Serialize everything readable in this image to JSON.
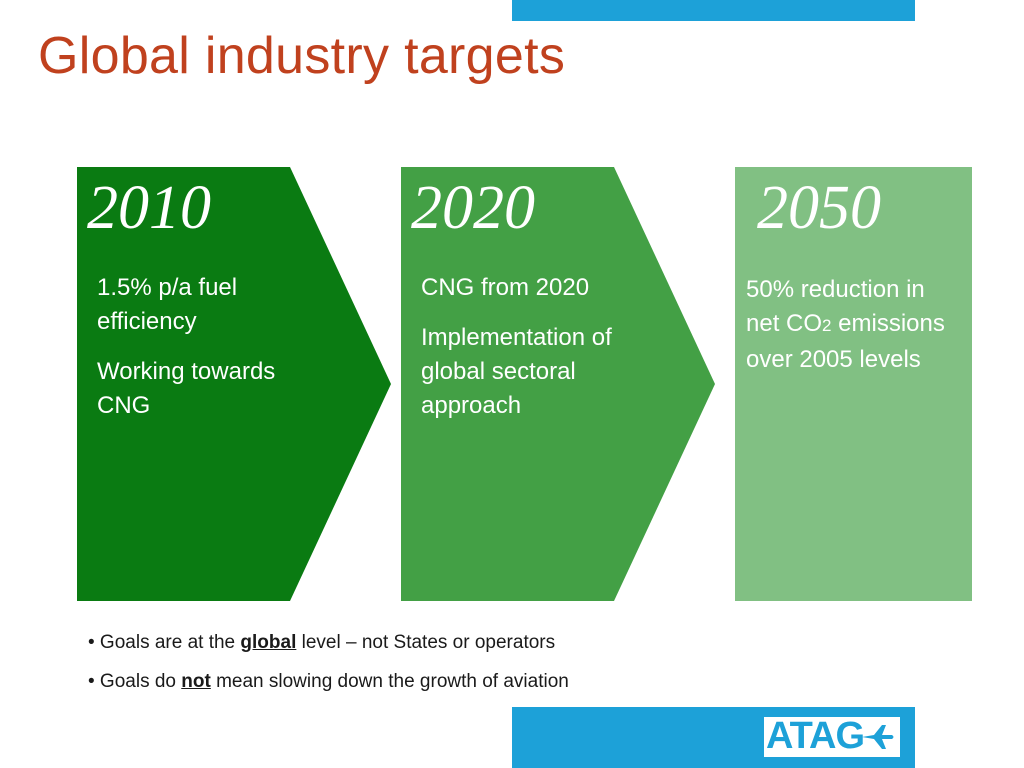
{
  "title": "Global industry targets",
  "panels": [
    {
      "year": "2010",
      "color": "#0a7b12",
      "lines": [
        "1.5% p/a fuel efficiency",
        "Working towards CNG"
      ]
    },
    {
      "year": "2020",
      "color": "#43a045",
      "lines": [
        "CNG from 2020",
        "Implementation of global sectoral approach"
      ]
    },
    {
      "year": "2050",
      "color": "#81c083",
      "line_main": "50% reduction in net CO",
      "line_sub": "2",
      "line_end": "emissions over 2005 levels"
    }
  ],
  "bullets": [
    {
      "prefix": "• Goals are at the ",
      "emph": "global",
      "suffix": " level – not States or operators"
    },
    {
      "prefix": "• Goals do ",
      "emph": "not",
      "suffix": " mean slowing down the growth of aviation"
    }
  ],
  "logo": {
    "text": "ATAG",
    "icon": "airplane-icon"
  },
  "colors": {
    "title": "#c0411e",
    "accent_bar": "#1da1d8"
  }
}
